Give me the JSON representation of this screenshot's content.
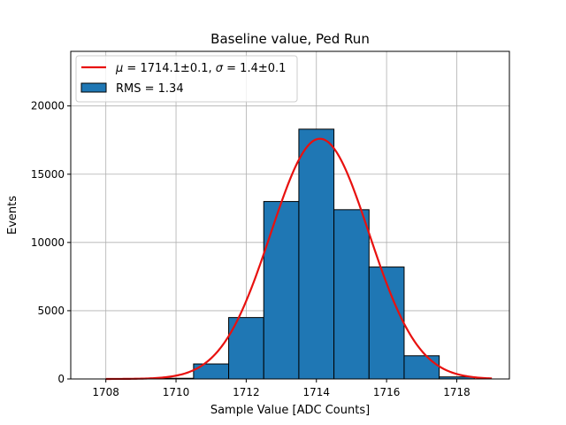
{
  "chart_data": {
    "type": "bar",
    "title": "Baseline value, Ped Run",
    "xlabel": "Sample Value [ADC Counts]",
    "ylabel": "Events",
    "xlim": [
      1707.0,
      1719.5
    ],
    "ylim": [
      0,
      24000
    ],
    "xticks": [
      1708,
      1710,
      1712,
      1714,
      1716,
      1718
    ],
    "yticks": [
      0,
      5000,
      10000,
      15000,
      20000
    ],
    "grid": true,
    "legend_position": "top-left",
    "histogram": {
      "name": "RMS = 1.34",
      "color": "#1f77b4",
      "bins": [
        {
          "x0": 1707.5,
          "x1": 1708.5,
          "count": 0
        },
        {
          "x0": 1708.5,
          "x1": 1709.5,
          "count": 0
        },
        {
          "x0": 1709.5,
          "x1": 1710.5,
          "count": 50
        },
        {
          "x0": 1710.5,
          "x1": 1711.5,
          "count": 1100
        },
        {
          "x0": 1711.5,
          "x1": 1712.5,
          "count": 4500
        },
        {
          "x0": 1712.5,
          "x1": 1713.5,
          "count": 13000
        },
        {
          "x0": 1713.5,
          "x1": 1714.5,
          "count": 18300
        },
        {
          "x0": 1714.5,
          "x1": 1715.5,
          "count": 12400
        },
        {
          "x0": 1715.5,
          "x1": 1716.5,
          "count": 8200
        },
        {
          "x0": 1716.5,
          "x1": 1717.5,
          "count": 1700
        },
        {
          "x0": 1717.5,
          "x1": 1718.5,
          "count": 150
        },
        {
          "x0": 1718.5,
          "x1": 1719.0,
          "count": 0
        }
      ]
    },
    "fit": {
      "name": "μ = 1714.1±0.1, σ = 1.4±0.1",
      "name_parts": [
        "μ",
        " = 1714.1±0.1, ",
        "σ",
        " = 1.4±0.1"
      ],
      "color": "#e8110f",
      "type": "gaussian",
      "amplitude": 17600,
      "mean": 1714.1,
      "sigma": 1.4,
      "x_range": [
        1708.0,
        1719.0
      ]
    }
  }
}
